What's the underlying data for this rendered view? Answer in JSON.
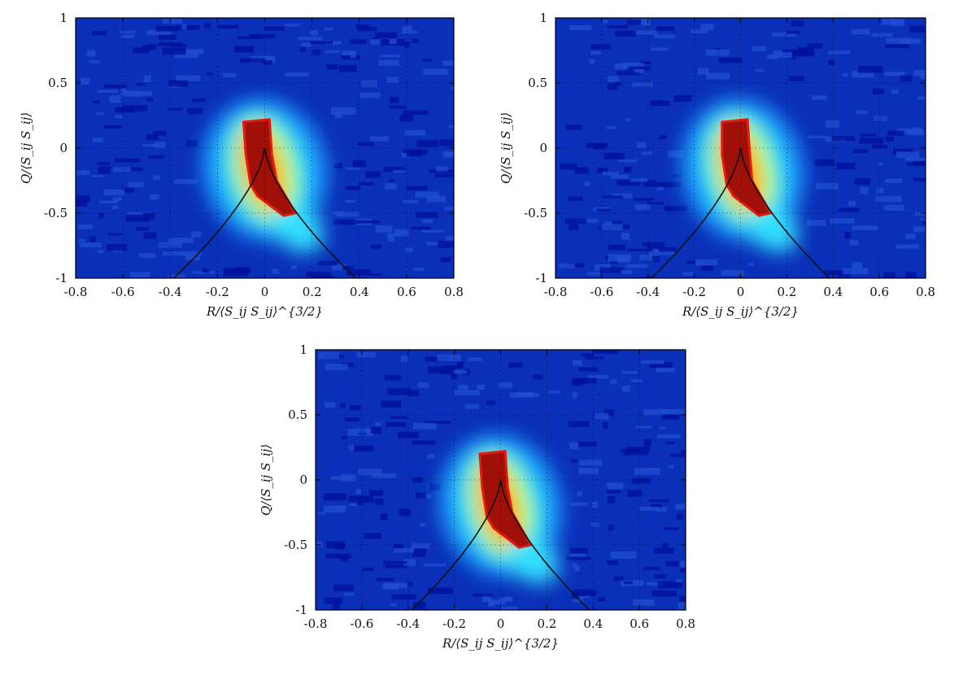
{
  "chart_data": [
    {
      "type": "heatmap",
      "xlabel": "R/⟨S_ij S_ij⟩^{3/2}",
      "ylabel": "Q/⟨S_ij S_ij⟩",
      "xlim": [
        -0.8,
        0.8
      ],
      "ylim": [
        -1,
        1
      ],
      "xticks": [
        "-0.8",
        "-0.6",
        "-0.4",
        "-0.2",
        "0",
        "0.2",
        "0.4",
        "0.6",
        "0.8"
      ],
      "yticks": [
        "-1",
        "-0.5",
        "0",
        "0.5",
        "1"
      ],
      "grid": true,
      "colormap": "jet",
      "density_peak": [
        -0.02,
        -0.12
      ],
      "reference_curve": "Q = -(27/4)^(1/3) R^(2/3)"
    },
    {
      "type": "heatmap",
      "xlabel": "R/⟨S_ij S_ij⟩^{3/2}",
      "ylabel": "Q/⟨S_ij S_ij⟩",
      "xlim": [
        -0.8,
        0.8
      ],
      "ylim": [
        -1,
        1
      ],
      "xticks": [
        "-0.8",
        "-0.6",
        "-0.4",
        "-0.2",
        "0",
        "0.2",
        "0.4",
        "0.6",
        "0.8"
      ],
      "yticks": [
        "-1",
        "-0.5",
        "0",
        "0.5",
        "1"
      ],
      "grid": true,
      "colormap": "jet",
      "density_peak": [
        -0.01,
        -0.12
      ],
      "reference_curve": "Q = -(27/4)^(1/3) R^(2/3)"
    },
    {
      "type": "heatmap",
      "xlabel": "R/⟨S_ij S_ij⟩^{3/2}",
      "ylabel": "Q/⟨S_ij S_ij⟩",
      "xlim": [
        -0.8,
        0.8
      ],
      "ylim": [
        -1,
        1
      ],
      "xticks": [
        "-0.8",
        "-0.6",
        "-0.4",
        "-0.2",
        "0",
        "0.2",
        "0.4",
        "0.6",
        "0.8"
      ],
      "yticks": [
        "-1",
        "-0.5",
        "0",
        "0.5",
        "1"
      ],
      "grid": true,
      "colormap": "jet",
      "density_peak": [
        -0.02,
        -0.15
      ],
      "reference_curve": "Q = -(27/4)^(1/3) R^(2/3)"
    }
  ]
}
